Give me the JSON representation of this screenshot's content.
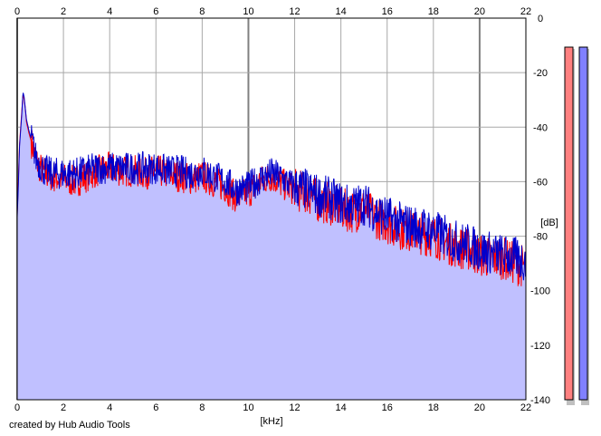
{
  "credit": "created by Hub Audio Tools",
  "chart_data": {
    "type": "area",
    "title": "",
    "xlabel": "[kHz]",
    "ylabel": "[dB]",
    "xlim": [
      0,
      22
    ],
    "ylim": [
      -140,
      0
    ],
    "x_ticks": [
      0,
      2,
      4,
      6,
      8,
      10,
      12,
      14,
      16,
      18,
      20,
      22
    ],
    "y_ticks": [
      0,
      -20,
      -40,
      -60,
      -80,
      -100,
      -120,
      -140
    ],
    "x_tick_labels": [
      "0",
      "2",
      "4",
      "6",
      "8",
      "10",
      "12",
      "14",
      "16",
      "18",
      "20",
      "22"
    ],
    "y_tick_labels": [
      "0",
      "-20",
      "-40",
      "-60",
      "-80",
      "-100",
      "-120",
      "-140"
    ],
    "grid": true,
    "fill_color": "#c0c0ff",
    "series": [
      {
        "color": "#ff0000",
        "x": [
          0,
          0.05,
          0.1,
          0.15,
          0.2,
          0.25,
          0.3,
          0.35,
          0.4,
          0.5,
          0.6,
          0.7,
          0.8,
          1.0,
          1.2,
          1.5,
          2.0,
          2.5,
          3.0,
          3.5,
          4.0,
          4.5,
          5.0,
          5.5,
          6.0,
          6.5,
          7.0,
          7.5,
          8.0,
          8.5,
          9.0,
          9.5,
          10.0,
          10.5,
          11.0,
          11.5,
          12.0,
          12.5,
          13.0,
          13.5,
          14.0,
          14.5,
          15.0,
          15.5,
          16.0,
          16.5,
          17.0,
          17.5,
          18.0,
          18.5,
          19.0,
          19.5,
          20.0,
          20.5,
          21.0,
          21.5,
          22.0
        ],
        "y": [
          -72,
          -60,
          -46,
          -40,
          -34,
          -28,
          -30,
          -33,
          -38,
          -42,
          -45,
          -48,
          -52,
          -55,
          -57,
          -58,
          -59,
          -60,
          -58,
          -56,
          -55,
          -56,
          -56,
          -57,
          -56,
          -57,
          -58,
          -59,
          -58,
          -60,
          -62,
          -66,
          -64,
          -60,
          -58,
          -61,
          -63,
          -64,
          -67,
          -68,
          -70,
          -71,
          -70,
          -73,
          -75,
          -77,
          -78,
          -79,
          -80,
          -82,
          -84,
          -85,
          -87,
          -88,
          -88,
          -90,
          -91
        ]
      },
      {
        "color": "#0000cc",
        "x": [
          0,
          0.05,
          0.1,
          0.15,
          0.2,
          0.25,
          0.3,
          0.35,
          0.4,
          0.5,
          0.6,
          0.7,
          0.8,
          1.0,
          1.2,
          1.5,
          2.0,
          2.5,
          3.0,
          3.5,
          4.0,
          4.5,
          5.0,
          5.5,
          6.0,
          6.5,
          7.0,
          7.5,
          8.0,
          8.5,
          9.0,
          9.5,
          10.0,
          10.5,
          11.0,
          11.5,
          12.0,
          12.5,
          13.0,
          13.5,
          14.0,
          14.5,
          15.0,
          15.5,
          16.0,
          16.5,
          17.0,
          17.5,
          18.0,
          18.5,
          19.0,
          19.5,
          20.0,
          20.5,
          21.0,
          21.5,
          22.0
        ],
        "y": [
          -73,
          -62,
          -47,
          -41,
          -35,
          -27,
          -29,
          -33,
          -37,
          -41,
          -44,
          -47,
          -51,
          -54,
          -56,
          -57,
          -57,
          -57,
          -56,
          -55,
          -55,
          -55,
          -55,
          -55,
          -55,
          -56,
          -56,
          -57,
          -56,
          -58,
          -60,
          -63,
          -62,
          -59,
          -57,
          -59,
          -62,
          -63,
          -65,
          -66,
          -68,
          -69,
          -68,
          -71,
          -73,
          -75,
          -76,
          -77,
          -78,
          -80,
          -82,
          -83,
          -85,
          -86,
          -87,
          -88,
          -89
        ]
      }
    ],
    "level_meters": [
      {
        "color": "#ff8080",
        "value": -140
      },
      {
        "color": "#8080ff",
        "value": -140
      }
    ]
  }
}
